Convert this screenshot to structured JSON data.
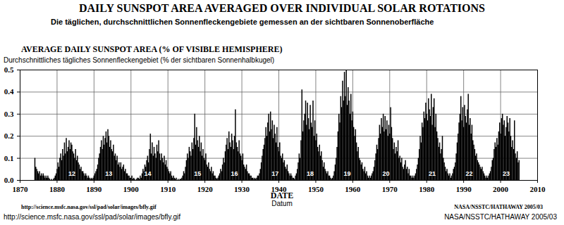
{
  "chart_data": {
    "type": "bar",
    "title": "DAILY SUNSPOT AREA AVERAGED OVER INDIVIDUAL SOLAR ROTATIONS",
    "subtitle": "Die täglichen, durchschnittlichen Sonnenfleckengebiete gemessen an der sichtbaren Sonnenoberfläche",
    "ylabel": "AVERAGE DAILY SUNSPOT AREA (% OF VISIBLE HEMISPHERE)",
    "ylabel_de": "Durchschnittliches tägliches Sonnenfleckengebiet (% der sichtbaren Sonnenhalbkugel)",
    "xlabel": "DATE",
    "xlabel_de": "Datum",
    "footer_left": [
      "http://science.msfc.nasa.gov/ssl/pad/solar/images/bfly.gif",
      "http://science.msfc.nasa.gov/ssl/pad/solar/images/bfly.gif"
    ],
    "footer_right": [
      "NASA/NSSTC/HATHAWAY 2005/03",
      "NASA/NSSTC/HATHAWAY 2005/03"
    ],
    "color": "#000000",
    "grid": true,
    "xlim": [
      1870,
      2010
    ],
    "xticks": [
      1870,
      1880,
      1890,
      1900,
      1910,
      1920,
      1930,
      1940,
      1950,
      1960,
      1970,
      1980,
      1990,
      2000,
      2010
    ],
    "ylim": [
      0,
      0.5
    ],
    "yticks": [
      {
        "value": 0,
        "label": "0.0"
      },
      0.1,
      0.2,
      0.3,
      0.4,
      0.5
    ],
    "annotations": [
      {
        "text": "12",
        "x": 1884,
        "y": 0.02
      },
      {
        "text": "13",
        "x": 1894,
        "y": 0.02
      },
      {
        "text": "14",
        "x": 1904.5,
        "y": 0.02
      },
      {
        "text": "15",
        "x": 1918,
        "y": 0.02
      },
      {
        "text": "16",
        "x": 1928,
        "y": 0.02
      },
      {
        "text": "17",
        "x": 1939,
        "y": 0.02
      },
      {
        "text": "18",
        "x": 1948.5,
        "y": 0.02
      },
      {
        "text": "19",
        "x": 1958.5,
        "y": 0.02
      },
      {
        "text": "20",
        "x": 1969,
        "y": 0.02
      },
      {
        "text": "21",
        "x": 1981.5,
        "y": 0.02
      },
      {
        "text": "22",
        "x": 1991.5,
        "y": 0.02
      },
      {
        "text": "23",
        "x": 2001.5,
        "y": 0.02
      }
    ],
    "x": [
      1874,
      1874.25,
      1874.5,
      1874.75,
      1875,
      1875.25,
      1875.5,
      1875.75,
      1876,
      1876.25,
      1876.5,
      1876.75,
      1877,
      1877.25,
      1877.5,
      1877.75,
      1878,
      1878.25,
      1878.5,
      1878.75,
      1879,
      1879.25,
      1879.5,
      1879.75,
      1880,
      1880.25,
      1880.5,
      1880.75,
      1881,
      1881.25,
      1881.5,
      1881.75,
      1882,
      1882.25,
      1882.5,
      1882.75,
      1883,
      1883.25,
      1883.5,
      1883.75,
      1884,
      1884.25,
      1884.5,
      1884.75,
      1885,
      1885.25,
      1885.5,
      1885.75,
      1886,
      1886.25,
      1886.5,
      1886.75,
      1887,
      1887.25,
      1887.5,
      1887.75,
      1888,
      1888.25,
      1888.5,
      1888.75,
      1889,
      1889.25,
      1889.5,
      1889.75,
      1890,
      1890.25,
      1890.5,
      1890.75,
      1891,
      1891.25,
      1891.5,
      1891.75,
      1892,
      1892.25,
      1892.5,
      1892.75,
      1893,
      1893.25,
      1893.5,
      1893.75,
      1894,
      1894.25,
      1894.5,
      1894.75,
      1895,
      1895.25,
      1895.5,
      1895.75,
      1896,
      1896.25,
      1896.5,
      1896.75,
      1897,
      1897.25,
      1897.5,
      1897.75,
      1898,
      1898.25,
      1898.5,
      1898.75,
      1899,
      1899.25,
      1899.5,
      1899.75,
      1900,
      1900.25,
      1900.5,
      1900.75,
      1901,
      1901.25,
      1901.5,
      1901.75,
      1902,
      1902.25,
      1902.5,
      1902.75,
      1903,
      1903.25,
      1903.5,
      1903.75,
      1904,
      1904.25,
      1904.5,
      1904.75,
      1905,
      1905.25,
      1905.5,
      1905.75,
      1906,
      1906.25,
      1906.5,
      1906.75,
      1907,
      1907.25,
      1907.5,
      1907.75,
      1908,
      1908.25,
      1908.5,
      1908.75,
      1909,
      1909.25,
      1909.5,
      1909.75,
      1910,
      1910.25,
      1910.5,
      1910.75,
      1911,
      1911.25,
      1911.5,
      1911.75,
      1912,
      1912.25,
      1912.5,
      1912.75,
      1913,
      1913.25,
      1913.5,
      1913.75,
      1914,
      1914.25,
      1914.5,
      1914.75,
      1915,
      1915.25,
      1915.5,
      1915.75,
      1916,
      1916.25,
      1916.5,
      1916.75,
      1917,
      1917.25,
      1917.5,
      1917.75,
      1918,
      1918.25,
      1918.5,
      1918.75,
      1919,
      1919.25,
      1919.5,
      1919.75,
      1920,
      1920.25,
      1920.5,
      1920.75,
      1921,
      1921.25,
      1921.5,
      1921.75,
      1922,
      1922.25,
      1922.5,
      1922.75,
      1923,
      1923.25,
      1923.5,
      1923.75,
      1924,
      1924.25,
      1924.5,
      1924.75,
      1925,
      1925.25,
      1925.5,
      1925.75,
      1926,
      1926.25,
      1926.5,
      1926.75,
      1927,
      1927.25,
      1927.5,
      1927.75,
      1928,
      1928.25,
      1928.5,
      1928.75,
      1929,
      1929.25,
      1929.5,
      1929.75,
      1930,
      1930.25,
      1930.5,
      1930.75,
      1931,
      1931.25,
      1931.5,
      1931.75,
      1932,
      1932.25,
      1932.5,
      1932.75,
      1933,
      1933.25,
      1933.5,
      1933.75,
      1934,
      1934.25,
      1934.5,
      1934.75,
      1935,
      1935.25,
      1935.5,
      1935.75,
      1936,
      1936.25,
      1936.5,
      1936.75,
      1937,
      1937.25,
      1937.5,
      1937.75,
      1938,
      1938.25,
      1938.5,
      1938.75,
      1939,
      1939.25,
      1939.5,
      1939.75,
      1940,
      1940.25,
      1940.5,
      1940.75,
      1941,
      1941.25,
      1941.5,
      1941.75,
      1942,
      1942.25,
      1942.5,
      1942.75,
      1943,
      1943.25,
      1943.5,
      1943.75,
      1944,
      1944.25,
      1944.5,
      1944.75,
      1945,
      1945.25,
      1945.5,
      1945.75,
      1946,
      1946.25,
      1946.5,
      1946.75,
      1947,
      1947.25,
      1947.5,
      1947.75,
      1948,
      1948.25,
      1948.5,
      1948.75,
      1949,
      1949.25,
      1949.5,
      1949.75,
      1950,
      1950.25,
      1950.5,
      1950.75,
      1951,
      1951.25,
      1951.5,
      1951.75,
      1952,
      1952.25,
      1952.5,
      1952.75,
      1953,
      1953.25,
      1953.5,
      1953.75,
      1954,
      1954.25,
      1954.5,
      1954.75,
      1955,
      1955.25,
      1955.5,
      1955.75,
      1956,
      1956.25,
      1956.5,
      1956.75,
      1957,
      1957.25,
      1957.5,
      1957.75,
      1958,
      1958.25,
      1958.5,
      1958.75,
      1959,
      1959.25,
      1959.5,
      1959.75,
      1960,
      1960.25,
      1960.5,
      1960.75,
      1961,
      1961.25,
      1961.5,
      1961.75,
      1962,
      1962.25,
      1962.5,
      1962.75,
      1963,
      1963.25,
      1963.5,
      1963.75,
      1964,
      1964.25,
      1964.5,
      1964.75,
      1965,
      1965.25,
      1965.5,
      1965.75,
      1966,
      1966.25,
      1966.5,
      1966.75,
      1967,
      1967.25,
      1967.5,
      1967.75,
      1968,
      1968.25,
      1968.5,
      1968.75,
      1969,
      1969.25,
      1969.5,
      1969.75,
      1970,
      1970.25,
      1970.5,
      1970.75,
      1971,
      1971.25,
      1971.5,
      1971.75,
      1972,
      1972.25,
      1972.5,
      1972.75,
      1973,
      1973.25,
      1973.5,
      1973.75,
      1974,
      1974.25,
      1974.5,
      1974.75,
      1975,
      1975.25,
      1975.5,
      1975.75,
      1976,
      1976.25,
      1976.5,
      1976.75,
      1977,
      1977.25,
      1977.5,
      1977.75,
      1978,
      1978.25,
      1978.5,
      1978.75,
      1979,
      1979.25,
      1979.5,
      1979.75,
      1980,
      1980.25,
      1980.5,
      1980.75,
      1981,
      1981.25,
      1981.5,
      1981.75,
      1982,
      1982.25,
      1982.5,
      1982.75,
      1983,
      1983.25,
      1983.5,
      1983.75,
      1984,
      1984.25,
      1984.5,
      1984.75,
      1985,
      1985.25,
      1985.5,
      1985.75,
      1986,
      1986.25,
      1986.5,
      1986.75,
      1987,
      1987.25,
      1987.5,
      1987.75,
      1988,
      1988.25,
      1988.5,
      1988.75,
      1989,
      1989.25,
      1989.5,
      1989.75,
      1990,
      1990.25,
      1990.5,
      1990.75,
      1991,
      1991.25,
      1991.5,
      1991.75,
      1992,
      1992.25,
      1992.5,
      1992.75,
      1993,
      1993.25,
      1993.5,
      1993.75,
      1994,
      1994.25,
      1994.5,
      1994.75,
      1995,
      1995.25,
      1995.5,
      1995.75,
      1996,
      1996.25,
      1996.5,
      1996.75,
      1997,
      1997.25,
      1997.5,
      1997.75,
      1998,
      1998.25,
      1998.5,
      1998.75,
      1999,
      1999.25,
      1999.5,
      1999.75,
      2000,
      2000.25,
      2000.5,
      2000.75,
      2001,
      2001.25,
      2001.5,
      2001.75,
      2002,
      2002.25,
      2002.5,
      2002.75,
      2003,
      2003.25,
      2003.5,
      2003.75,
      2004,
      2004.25,
      2004.5,
      2004.75,
      2005
    ],
    "values": [
      0.1,
      0.06,
      0.05,
      0.04,
      0.03,
      0.04,
      0.02,
      0.03,
      0.02,
      0.03,
      0.02,
      0.01,
      0.02,
      0.01,
      0.02,
      0.01,
      0.005,
      0.0,
      0.005,
      0.0,
      0.005,
      0.01,
      0.02,
      0.03,
      0.05,
      0.08,
      0.06,
      0.1,
      0.12,
      0.09,
      0.14,
      0.11,
      0.17,
      0.12,
      0.19,
      0.13,
      0.15,
      0.18,
      0.14,
      0.17,
      0.16,
      0.13,
      0.12,
      0.1,
      0.14,
      0.09,
      0.11,
      0.08,
      0.07,
      0.05,
      0.06,
      0.04,
      0.04,
      0.03,
      0.02,
      0.03,
      0.02,
      0.01,
      0.02,
      0.01,
      0.005,
      0.01,
      0.005,
      0.01,
      0.02,
      0.03,
      0.04,
      0.05,
      0.07,
      0.1,
      0.12,
      0.15,
      0.18,
      0.14,
      0.2,
      0.16,
      0.19,
      0.22,
      0.17,
      0.23,
      0.2,
      0.15,
      0.18,
      0.14,
      0.13,
      0.16,
      0.11,
      0.12,
      0.09,
      0.11,
      0.07,
      0.08,
      0.06,
      0.08,
      0.05,
      0.06,
      0.07,
      0.04,
      0.05,
      0.03,
      0.03,
      0.02,
      0.02,
      0.01,
      0.01,
      0.02,
      0.005,
      0.01,
      0.005,
      0.0,
      0.005,
      0.01,
      0.01,
      0.005,
      0.02,
      0.01,
      0.03,
      0.05,
      0.04,
      0.07,
      0.06,
      0.09,
      0.11,
      0.08,
      0.14,
      0.21,
      0.12,
      0.17,
      0.11,
      0.15,
      0.12,
      0.1,
      0.16,
      0.13,
      0.18,
      0.12,
      0.09,
      0.12,
      0.1,
      0.08,
      0.11,
      0.07,
      0.09,
      0.06,
      0.05,
      0.04,
      0.03,
      0.04,
      0.02,
      0.01,
      0.02,
      0.01,
      0.005,
      0.01,
      0.0,
      0.005,
      0.0,
      0.005,
      0.005,
      0.01,
      0.02,
      0.04,
      0.03,
      0.06,
      0.09,
      0.12,
      0.1,
      0.15,
      0.13,
      0.11,
      0.17,
      0.14,
      0.19,
      0.3,
      0.16,
      0.24,
      0.18,
      0.15,
      0.2,
      0.13,
      0.17,
      0.11,
      0.14,
      0.1,
      0.09,
      0.12,
      0.07,
      0.06,
      0.08,
      0.05,
      0.04,
      0.06,
      0.03,
      0.04,
      0.02,
      0.02,
      0.01,
      0.005,
      0.01,
      0.02,
      0.03,
      0.05,
      0.04,
      0.07,
      0.1,
      0.08,
      0.13,
      0.16,
      0.19,
      0.14,
      0.22,
      0.17,
      0.15,
      0.21,
      0.18,
      0.14,
      0.2,
      0.32,
      0.17,
      0.15,
      0.13,
      0.18,
      0.12,
      0.11,
      0.09,
      0.12,
      0.07,
      0.06,
      0.05,
      0.07,
      0.04,
      0.03,
      0.03,
      0.02,
      0.02,
      0.01,
      0.01,
      0.005,
      0.01,
      0.005,
      0.01,
      0.02,
      0.02,
      0.03,
      0.05,
      0.08,
      0.11,
      0.14,
      0.16,
      0.19,
      0.24,
      0.2,
      0.26,
      0.3,
      0.22,
      0.31,
      0.23,
      0.27,
      0.19,
      0.25,
      0.21,
      0.17,
      0.24,
      0.15,
      0.13,
      0.17,
      0.11,
      0.1,
      0.12,
      0.08,
      0.09,
      0.06,
      0.05,
      0.07,
      0.04,
      0.03,
      0.02,
      0.03,
      0.02,
      0.01,
      0.01,
      0.005,
      0.02,
      0.03,
      0.05,
      0.08,
      0.12,
      0.1,
      0.18,
      0.41,
      0.22,
      0.27,
      0.3,
      0.36,
      0.25,
      0.35,
      0.28,
      0.23,
      0.34,
      0.26,
      0.24,
      0.36,
      0.2,
      0.27,
      0.18,
      0.21,
      0.15,
      0.13,
      0.16,
      0.11,
      0.13,
      0.09,
      0.06,
      0.08,
      0.05,
      0.04,
      0.03,
      0.04,
      0.02,
      0.02,
      0.01,
      0.005,
      0.01,
      0.02,
      0.04,
      0.07,
      0.1,
      0.15,
      0.22,
      0.3,
      0.26,
      0.38,
      0.33,
      0.45,
      0.36,
      0.49,
      0.38,
      0.5,
      0.34,
      0.42,
      0.36,
      0.3,
      0.39,
      0.27,
      0.31,
      0.24,
      0.2,
      0.23,
      0.17,
      0.13,
      0.15,
      0.1,
      0.09,
      0.07,
      0.08,
      0.05,
      0.04,
      0.06,
      0.03,
      0.04,
      0.02,
      0.01,
      0.02,
      0.01,
      0.02,
      0.03,
      0.04,
      0.06,
      0.09,
      0.12,
      0.16,
      0.14,
      0.19,
      0.25,
      0.21,
      0.28,
      0.24,
      0.3,
      0.22,
      0.29,
      0.23,
      0.27,
      0.2,
      0.25,
      0.21,
      0.33,
      0.24,
      0.19,
      0.14,
      0.17,
      0.12,
      0.15,
      0.13,
      0.18,
      0.1,
      0.11,
      0.08,
      0.1,
      0.06,
      0.05,
      0.07,
      0.09,
      0.05,
      0.06,
      0.03,
      0.05,
      0.02,
      0.02,
      0.01,
      0.02,
      0.01,
      0.02,
      0.03,
      0.05,
      0.07,
      0.1,
      0.14,
      0.2,
      0.17,
      0.26,
      0.24,
      0.31,
      0.28,
      0.35,
      0.3,
      0.27,
      0.37,
      0.32,
      0.29,
      0.39,
      0.25,
      0.33,
      0.37,
      0.24,
      0.3,
      0.22,
      0.19,
      0.15,
      0.17,
      0.12,
      0.14,
      0.2,
      0.1,
      0.08,
      0.06,
      0.04,
      0.05,
      0.03,
      0.02,
      0.03,
      0.01,
      0.02,
      0.03,
      0.05,
      0.06,
      0.08,
      0.12,
      0.17,
      0.21,
      0.26,
      0.3,
      0.38,
      0.27,
      0.33,
      0.24,
      0.34,
      0.29,
      0.26,
      0.32,
      0.39,
      0.25,
      0.28,
      0.21,
      0.25,
      0.18,
      0.16,
      0.14,
      0.11,
      0.12,
      0.09,
      0.08,
      0.07,
      0.06,
      0.05,
      0.06,
      0.04,
      0.03,
      0.02,
      0.01,
      0.02,
      0.01,
      0.02,
      0.03,
      0.04,
      0.06,
      0.09,
      0.1,
      0.14,
      0.17,
      0.15,
      0.19,
      0.16,
      0.22,
      0.26,
      0.21,
      0.28,
      0.3,
      0.25,
      0.27,
      0.2,
      0.24,
      0.29,
      0.26,
      0.22,
      0.28,
      0.2,
      0.15,
      0.18,
      0.14,
      0.27,
      0.12,
      0.1,
      0.13,
      0.08,
      0.09
    ]
  }
}
